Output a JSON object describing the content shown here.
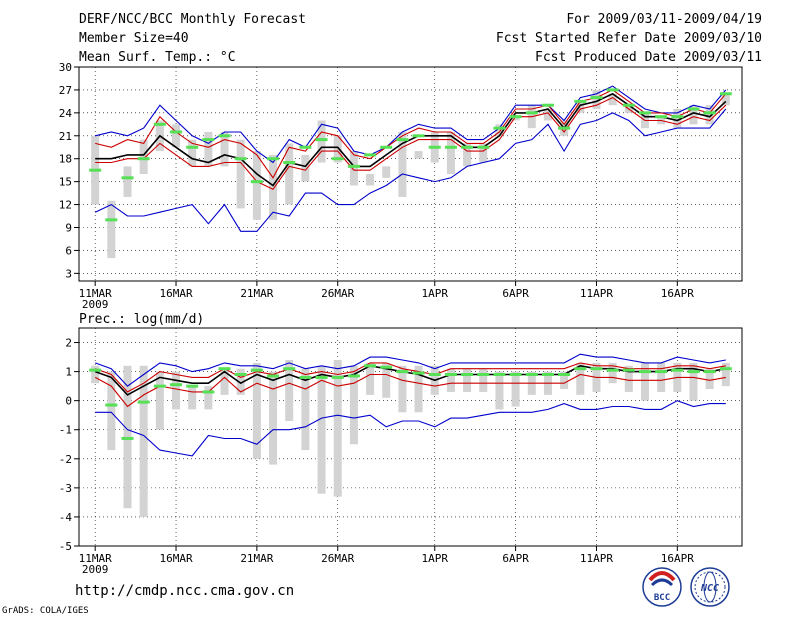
{
  "header": {
    "title": "DERF/NCC/BCC Monthly Forecast",
    "member_size": "Member Size=40",
    "variable": "Mean Surf. Temp.: °C",
    "period": "For 2009/03/11-2009/04/19",
    "start_date": "Fcst Started Refer Date 2009/03/10",
    "produced_date": "Fcst Produced Date 2009/03/11"
  },
  "footer": {
    "url": "http://cmdp.ncc.cma.gov.cn",
    "credit": "GrADS: COLA/IGES",
    "logo1_text": "BCC",
    "logo2_text": "NCC"
  },
  "colors": {
    "max_line": "#0000cc",
    "min_line": "#0000cc",
    "upper_line": "#cc0000",
    "lower_line": "#cc0000",
    "mean_line": "#000000",
    "bar": "#d3d3d3",
    "marker": "#55e055"
  },
  "chart_data": [
    {
      "type": "line",
      "title": "Mean Surf. Temp.: °C",
      "xlabel": "",
      "ylabel": "°C",
      "ylim": [
        2,
        30
      ],
      "yticks": [
        3,
        6,
        9,
        12,
        15,
        18,
        21,
        24,
        27,
        30
      ],
      "x_tick_labels": [
        "11MAR",
        "16MAR",
        "21MAR",
        "26MAR",
        "1APR",
        "6APR",
        "11APR",
        "16APR"
      ],
      "x_tick_days": [
        1,
        6,
        11,
        16,
        22,
        27,
        32,
        37
      ],
      "year_label": "2009",
      "x": [
        1,
        2,
        3,
        4,
        5,
        6,
        7,
        8,
        9,
        10,
        11,
        12,
        13,
        14,
        15,
        16,
        17,
        18,
        19,
        20,
        21,
        22,
        23,
        24,
        25,
        26,
        27,
        28,
        29,
        30,
        31,
        32,
        33,
        34,
        35,
        36,
        37,
        38,
        39,
        40
      ],
      "series": [
        {
          "name": "max",
          "values": [
            21,
            21.5,
            21,
            22,
            25,
            23,
            21,
            20,
            21.5,
            21.5,
            19,
            17.5,
            20.5,
            19.5,
            22.5,
            22,
            19,
            18.5,
            19.5,
            21.5,
            22.5,
            22,
            22,
            20.5,
            20.5,
            22,
            25,
            25,
            25,
            23,
            26,
            26.5,
            27.5,
            26,
            24.5,
            24,
            24,
            25,
            24.5,
            27
          ]
        },
        {
          "name": "upper",
          "values": [
            20,
            19.5,
            20.5,
            20,
            23.5,
            21.5,
            20,
            19.5,
            20.5,
            20,
            18.5,
            15.5,
            19.5,
            19,
            21.5,
            21,
            18.5,
            18,
            19.5,
            21,
            22,
            21.5,
            21.5,
            20,
            20,
            21.5,
            24.5,
            24.5,
            25,
            22.5,
            25.5,
            26,
            27,
            25.5,
            24,
            24,
            23.5,
            24.5,
            24,
            26.5
          ]
        },
        {
          "name": "mean",
          "values": [
            18,
            18,
            18.5,
            18.5,
            21,
            19.5,
            18,
            17.5,
            18.5,
            18,
            16,
            14.5,
            17.5,
            17,
            19.5,
            19.5,
            17,
            17,
            18.5,
            20,
            21,
            21,
            21,
            19.5,
            19.5,
            21,
            24,
            24,
            24.5,
            22,
            25,
            25.5,
            26.5,
            25,
            23.5,
            23.5,
            23,
            24,
            23.5,
            25.5
          ]
        },
        {
          "name": "lower",
          "values": [
            17.5,
            17.5,
            18,
            18,
            20,
            18.5,
            17,
            17,
            17.5,
            17.5,
            15,
            14,
            17,
            16.5,
            19,
            19,
            16.5,
            16.5,
            18,
            19.5,
            20.5,
            20.5,
            20.5,
            19,
            19,
            20.5,
            23.5,
            23.5,
            24,
            21.5,
            24.5,
            25,
            26,
            24.5,
            23,
            23,
            22.5,
            23.5,
            23,
            25
          ]
        },
        {
          "name": "min",
          "values": [
            11,
            12,
            10.5,
            10.5,
            11,
            11.5,
            12,
            9.5,
            12,
            8.5,
            8.5,
            11,
            10.5,
            13.5,
            13.5,
            12,
            12,
            13.5,
            14.5,
            16,
            15.5,
            15,
            15.5,
            17,
            17.5,
            18,
            20,
            20.5,
            22.5,
            19,
            22.5,
            23,
            24,
            23,
            21,
            21.5,
            22,
            22,
            22,
            24.5
          ]
        },
        {
          "name": "bar_top",
          "values": [
            21,
            12.5,
            17,
            20.5,
            23,
            22.5,
            20.5,
            21.5,
            21.5,
            20.5,
            19,
            18.5,
            20,
            18.5,
            23,
            21,
            19,
            16,
            17,
            21.5,
            18,
            21.5,
            21.5,
            20,
            20,
            22.5,
            23.5,
            25,
            24.5,
            23,
            25.5,
            27,
            26.5,
            25,
            24,
            23.5,
            24.5,
            25,
            25,
            26.5
          ]
        },
        {
          "name": "bar_bottom",
          "values": [
            12,
            5,
            13,
            16,
            19,
            19.5,
            17,
            17,
            17,
            11.5,
            10,
            10,
            12,
            15,
            17.5,
            17.5,
            14.5,
            14.5,
            15.5,
            13,
            19,
            17.5,
            16,
            17,
            17.5,
            21,
            23,
            22,
            23,
            21,
            24,
            24.5,
            25,
            24,
            22,
            22.5,
            22,
            22.5,
            22.5,
            25
          ]
        },
        {
          "name": "marker",
          "values": [
            16.5,
            10,
            15.5,
            18,
            22.5,
            21.5,
            19.5,
            20.5,
            21,
            18,
            15,
            18,
            17.5,
            19.5,
            20.5,
            18,
            17,
            18.5,
            19.5,
            20.5,
            21,
            19.5,
            19.5,
            19.5,
            19.5,
            22,
            23.5,
            24,
            25,
            22,
            25.5,
            26,
            27,
            25,
            24,
            23.5,
            23.5,
            24.5,
            24,
            26.5
          ]
        }
      ]
    },
    {
      "type": "line",
      "title": "Prec.: log(mm/d)",
      "xlabel": "",
      "ylabel": "log(mm/d)",
      "ylim": [
        -5,
        2.5
      ],
      "yticks": [
        -5,
        -4,
        -3,
        -2,
        -1,
        0,
        1,
        2
      ],
      "x_tick_labels": [
        "11MAR",
        "16MAR",
        "21MAR",
        "26MAR",
        "1APR",
        "6APR",
        "11APR",
        "16APR"
      ],
      "x_tick_days": [
        1,
        6,
        11,
        16,
        22,
        27,
        32,
        37
      ],
      "year_label": "2009",
      "x": [
        1,
        2,
        3,
        4,
        5,
        6,
        7,
        8,
        9,
        10,
        11,
        12,
        13,
        14,
        15,
        16,
        17,
        18,
        19,
        20,
        21,
        22,
        23,
        24,
        25,
        26,
        27,
        28,
        29,
        30,
        31,
        32,
        33,
        34,
        35,
        36,
        37,
        38,
        39,
        40
      ],
      "series": [
        {
          "name": "max",
          "values": [
            1.3,
            1.1,
            0.5,
            0.9,
            1.3,
            1.2,
            1,
            1.1,
            1.3,
            1.2,
            1.2,
            1.1,
            1.3,
            1.1,
            1.2,
            1.1,
            1.2,
            1.5,
            1.5,
            1.4,
            1.3,
            1.1,
            1.3,
            1.3,
            1.3,
            1.3,
            1.3,
            1.3,
            1.3,
            1.3,
            1.6,
            1.5,
            1.5,
            1.4,
            1.3,
            1.3,
            1.5,
            1.4,
            1.3,
            1.4
          ]
        },
        {
          "name": "upper",
          "values": [
            1.1,
            0.9,
            0.3,
            0.6,
            1,
            0.9,
            0.8,
            0.8,
            1.1,
            0.8,
            1,
            0.9,
            1.1,
            0.9,
            1,
            0.9,
            1,
            1.3,
            1.3,
            1.1,
            1,
            0.9,
            1.1,
            1.1,
            1.1,
            1.1,
            1.1,
            1.1,
            1.1,
            1.1,
            1.3,
            1.2,
            1.2,
            1.1,
            1.1,
            1.1,
            1.2,
            1.2,
            1.1,
            1.2
          ]
        },
        {
          "name": "mean",
          "values": [
            1,
            0.8,
            0.2,
            0.5,
            0.8,
            0.7,
            0.6,
            0.6,
            1,
            0.6,
            0.9,
            0.7,
            0.9,
            0.7,
            0.9,
            0.8,
            0.9,
            1.2,
            1.1,
            1,
            0.9,
            0.7,
            0.9,
            0.9,
            0.9,
            0.9,
            0.9,
            0.9,
            0.9,
            0.9,
            1.2,
            1.1,
            1.1,
            1,
            1,
            1,
            1.1,
            1.1,
            1,
            1.1
          ]
        },
        {
          "name": "lower",
          "values": [
            0.8,
            0.5,
            -0.2,
            0.2,
            0.5,
            0.4,
            0.3,
            0.3,
            0.8,
            0.3,
            0.6,
            0.4,
            0.6,
            0.4,
            0.7,
            0.5,
            0.6,
            0.9,
            0.9,
            0.7,
            0.6,
            0.5,
            0.6,
            0.6,
            0.6,
            0.6,
            0.6,
            0.6,
            0.6,
            0.6,
            0.9,
            0.8,
            0.8,
            0.7,
            0.7,
            0.7,
            0.8,
            0.8,
            0.7,
            0.8
          ]
        },
        {
          "name": "min",
          "values": [
            -0.4,
            -0.4,
            -1,
            -1.2,
            -1.7,
            -1.8,
            -1.9,
            -1.2,
            -1.3,
            -1.3,
            -1.5,
            -1,
            -1,
            -0.9,
            -0.6,
            -0.5,
            -0.6,
            -0.5,
            -0.9,
            -0.7,
            -0.7,
            -0.9,
            -0.6,
            -0.6,
            -0.5,
            -0.4,
            -0.4,
            -0.4,
            -0.3,
            -0.1,
            -0.3,
            -0.3,
            -0.2,
            -0.2,
            -0.3,
            -0.3,
            0,
            -0.2,
            -0.1,
            -0.1
          ]
        },
        {
          "name": "bar_top",
          "values": [
            1.2,
            1,
            1.2,
            1.2,
            1,
            1,
            0.5,
            0.5,
            1.1,
            1.1,
            1.3,
            1,
            1.4,
            1.1,
            1.2,
            1.4,
            1.2,
            1.3,
            1.3,
            1.2,
            1.2,
            1.2,
            1.1,
            1.1,
            1.1,
            1,
            1,
            1,
            1,
            1,
            1.3,
            1.3,
            1.3,
            1.2,
            1.3,
            1.3,
            1.3,
            1.3,
            1.1,
            1.3
          ]
        },
        {
          "name": "bar_bottom",
          "values": [
            0.6,
            -1.7,
            -3.7,
            -4,
            -1,
            -0.3,
            -0.3,
            -0.3,
            0.2,
            0.2,
            -2,
            -2.2,
            -0.7,
            -1.7,
            -3.2,
            -3.3,
            -1.5,
            0.2,
            0.1,
            -0.4,
            -0.4,
            0.2,
            0.3,
            0.3,
            0.3,
            -0.3,
            -0.2,
            0.2,
            0.2,
            0.4,
            0.2,
            0.3,
            0.6,
            0.3,
            0,
            0.3,
            0.3,
            0,
            0.4,
            0.5
          ]
        },
        {
          "name": "marker",
          "values": [
            1.05,
            -0.15,
            -1.3,
            -0.05,
            0.5,
            0.55,
            0.5,
            0.3,
            1.1,
            0.9,
            1.05,
            0.85,
            1.1,
            0.8,
            0.8,
            0.8,
            0.85,
            1.2,
            1.15,
            1,
            0.95,
            0.9,
            0.9,
            0.9,
            0.9,
            0.9,
            0.9,
            0.9,
            0.9,
            0.9,
            1.1,
            1.1,
            1.05,
            1.05,
            1,
            1,
            1.05,
            1,
            1,
            1.1
          ]
        }
      ]
    }
  ]
}
